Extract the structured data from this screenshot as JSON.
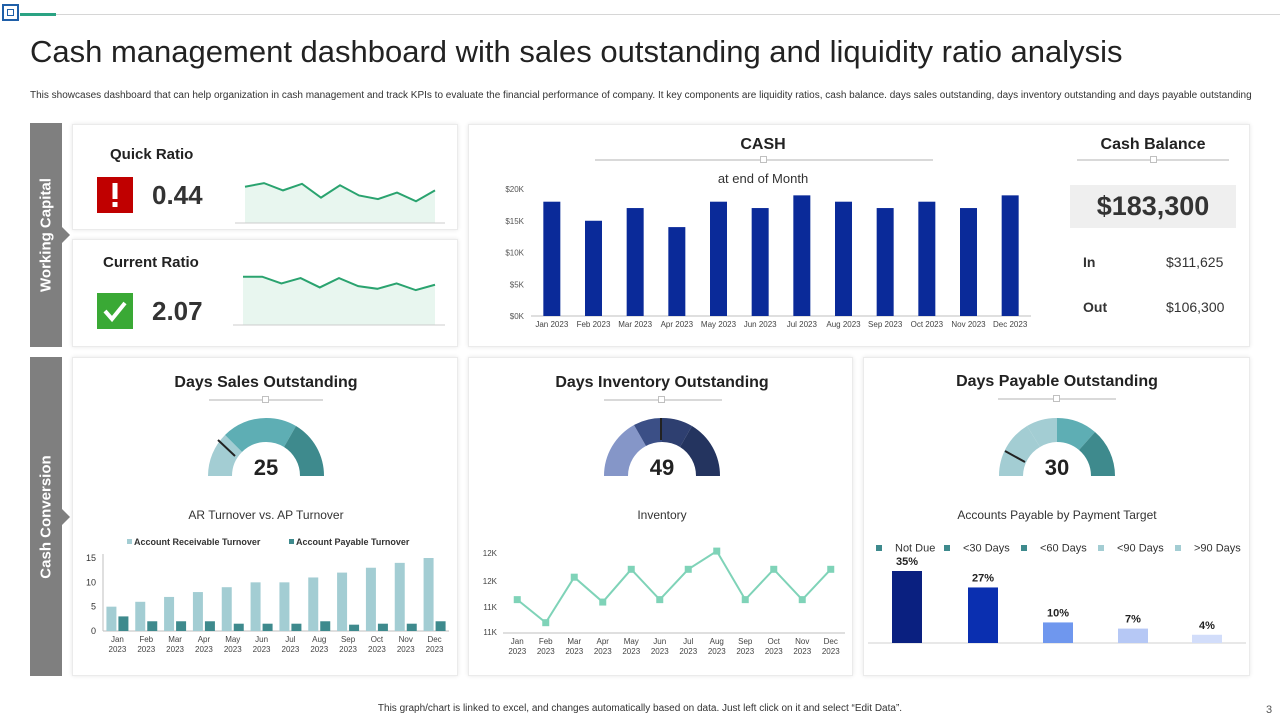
{
  "title": "Cash management dashboard with sales outstanding and liquidity ratio analysis",
  "subtitle": "This showcases dashboard that can help organization in cash management  and track KPIs  to evaluate the  financial performance of company. It key components are liquidity  ratios, cash balance. days sales outstanding, days inventory outstanding and days payable outstanding",
  "footer": "This graph/chart is linked to excel, and changes automatically based on data. Just left click on it and select “Edit Data”.",
  "page_number": "3",
  "sidebars": {
    "working_capital": "Working Capital",
    "cash_conversion": "Cash Conversion"
  },
  "colors": {
    "navy": "#0a2a99",
    "teal": "#3e8a8d",
    "light_teal": "#a3cdd3",
    "mint": "#7fd3b8",
    "sidebar": "#7f7f7f"
  },
  "ratios": {
    "quick": {
      "label": "Quick Ratio",
      "value": "0.44",
      "status": "alert-icon"
    },
    "current": {
      "label": "Current Ratio",
      "value": "2.07",
      "status": "check-icon"
    }
  },
  "cash_balance": {
    "title": "Cash Balance",
    "value": "$183,300",
    "in_label": "In",
    "in_value": "$311,625",
    "out_label": "Out",
    "out_value": "$106,300"
  },
  "gauges": {
    "dso": {
      "title": "Days Sales Outstanding",
      "value": "25"
    },
    "dio": {
      "title": "Days Inventory Outstanding",
      "value": "49"
    },
    "dpo": {
      "title": "Days Payable Outstanding",
      "value": "30"
    }
  },
  "chart_data": [
    {
      "id": "quick_ratio_trend",
      "type": "area",
      "values": [
        0.5,
        0.55,
        0.45,
        0.54,
        0.35,
        0.52,
        0.38,
        0.33,
        0.42,
        0.3,
        0.45
      ],
      "ylim": [
        0,
        0.8
      ]
    },
    {
      "id": "current_ratio_trend",
      "type": "area",
      "values": [
        2.8,
        2.8,
        2.55,
        2.75,
        2.4,
        2.75,
        2.45,
        2.35,
        2.55,
        2.3,
        2.5
      ],
      "ylim": [
        1.0,
        3.2
      ]
    },
    {
      "id": "cash",
      "type": "bar",
      "title": "CASH",
      "subtitle": "at end of Month",
      "categories": [
        "Jan 2023",
        "Feb 2023",
        "Mar 2023",
        "Apr 2023",
        "May 2023",
        "Jun 2023",
        "Jul 2023",
        "Aug 2023",
        "Sep 2023",
        "Oct 2023",
        "Nov 2023",
        "Dec 2023"
      ],
      "values": [
        18000,
        15000,
        17000,
        14000,
        18000,
        17000,
        19000,
        18000,
        17000,
        18000,
        17000,
        19000
      ],
      "yticks": [
        "$0K",
        "$5K",
        "$10K",
        "$15K",
        "$20K"
      ],
      "ylim": [
        0,
        20000
      ]
    },
    {
      "id": "ar_ap_turnover",
      "type": "bar",
      "title": "AR Turnover vs. AP Turnover",
      "categories": [
        "Jan 2023",
        "Feb 2023",
        "Mar 2023",
        "Apr 2023",
        "May 2023",
        "Jun 2023",
        "Jul 2023",
        "Aug 2023",
        "Sep 2023",
        "Oct 2023",
        "Nov 2023",
        "Dec 2023"
      ],
      "series": [
        {
          "name": "Account Receivable Turnover",
          "values": [
            5,
            6,
            7,
            8,
            9,
            10,
            10,
            11,
            12,
            13,
            14,
            15
          ]
        },
        {
          "name": "Account Payable Turnover",
          "values": [
            3,
            2,
            2,
            2,
            1.5,
            1.5,
            1.5,
            2,
            1.3,
            1.5,
            1.5,
            2
          ]
        }
      ],
      "yticks": [
        "0",
        "5",
        "10",
        "15"
      ],
      "ylim": [
        0,
        15
      ]
    },
    {
      "id": "inventory",
      "type": "line",
      "title": "Inventory",
      "categories": [
        "Jan 2023",
        "Feb 2023",
        "Mar 2023",
        "Apr 2023",
        "May 2023",
        "Jun 2023",
        "Jul 2023",
        "Aug 2023",
        "Sep 2023",
        "Oct 2023",
        "Nov 2023",
        "Dec 2023"
      ],
      "values": [
        11.45,
        11.07,
        11.82,
        11.41,
        11.95,
        11.45,
        11.95,
        12.25,
        11.45,
        11.95,
        11.45,
        11.95
      ],
      "yticks": [
        "11K",
        "11K",
        "12K",
        "12K"
      ],
      "ylim": [
        10.9,
        12.4
      ]
    },
    {
      "id": "payable_by_target",
      "type": "bar",
      "title": "Accounts Payable by Payment Target",
      "categories": [
        "Not Due",
        "<30 Days",
        "<60 Days",
        "<90 Days",
        ">90 Days"
      ],
      "values": [
        35,
        27,
        10,
        7,
        4
      ],
      "labels": [
        "35%",
        "27%",
        "10%",
        "7%",
        "4%"
      ],
      "colors": [
        "#0a2080",
        "#0a2fb0",
        "#6f97ee",
        "#b6c8f5",
        "#d2ddfa"
      ],
      "ylim": [
        0,
        35
      ]
    }
  ]
}
